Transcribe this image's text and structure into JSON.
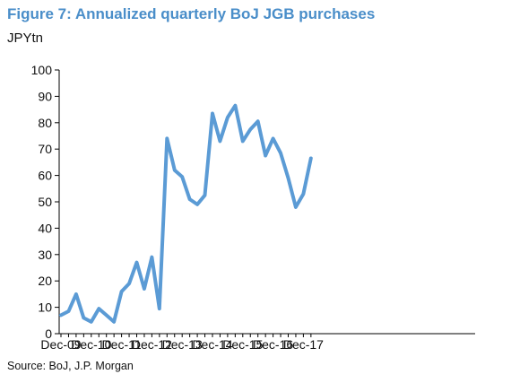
{
  "title": "Figure 7: Annualized quarterly BoJ JGB purchases",
  "unit_label": "JPYtn",
  "source": "Source: BoJ, J.P. Morgan",
  "colors": {
    "title": "#4a8ec9",
    "line": "#5b9bd5",
    "axis": "#000000"
  },
  "chart_data": {
    "type": "line",
    "title": "Figure 7: Annualized quarterly BoJ JGB purchases",
    "ylabel": "JPYtn",
    "xlabel": "",
    "ylim": [
      0,
      100
    ],
    "yticks": [
      0,
      10,
      20,
      30,
      40,
      50,
      60,
      70,
      80,
      90,
      100
    ],
    "xticks": [
      "Dec-09",
      "Dec-10",
      "Dec-11",
      "Dec-12",
      "Dec-13",
      "Dec-14",
      "Dec-15",
      "Dec-16",
      "Dec-17"
    ],
    "grid": false,
    "legend": "none",
    "series": [
      {
        "x": [
          "Dec-09",
          "Mar-10",
          "Jun-10",
          "Sep-10",
          "Dec-10",
          "Mar-11",
          "Jun-11",
          "Sep-11",
          "Dec-11",
          "Mar-12",
          "Jun-12",
          "Sep-12",
          "Dec-12",
          "Mar-13",
          "Jun-13",
          "Sep-13",
          "Dec-13",
          "Mar-14",
          "Jun-14",
          "Sep-14",
          "Dec-14",
          "Mar-15",
          "Jun-15",
          "Sep-15",
          "Dec-15",
          "Mar-16",
          "Jun-16",
          "Sep-16",
          "Dec-16",
          "Mar-17",
          "Jun-17",
          "Sep-17",
          "Dec-17",
          "Mar-18"
        ],
        "values": [
          7,
          8.5,
          15,
          6,
          4.5,
          9.5,
          7,
          4.5,
          16,
          19,
          27,
          17,
          29,
          9.5,
          74,
          62,
          59.5,
          51,
          49,
          52.5,
          83.5,
          73,
          82,
          86.5,
          73,
          77.5,
          80.5,
          67.5,
          74,
          68.5,
          59,
          48,
          53,
          66.5
        ]
      }
    ]
  }
}
